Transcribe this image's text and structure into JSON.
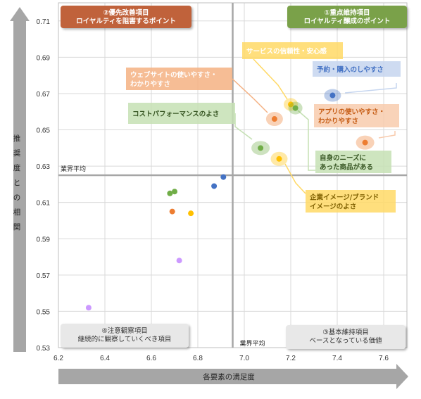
{
  "chart_data": {
    "type": "scatter",
    "xlabel": "各要素の満足度",
    "ylabel": "推奨度との相関",
    "xlim": [
      6.2,
      7.7
    ],
    "ylim": [
      0.53,
      0.72
    ],
    "x_ticks": [
      "6.2",
      "6.4",
      "6.6",
      "6.8",
      "7.0",
      "7.2",
      "7.4",
      "7.6"
    ],
    "y_ticks": [
      "0.53",
      "0.55",
      "0.57",
      "0.59",
      "0.61",
      "0.63",
      "0.65",
      "0.67",
      "0.69",
      "0.71"
    ],
    "grid": true,
    "industry_average": {
      "x": 6.95,
      "y": 0.625,
      "x_label": "業界平均",
      "y_label": "業界平均"
    },
    "quadrants": [
      {
        "name": "q2",
        "lines": [
          "②優先改善項目",
          "ロイヤルティを阻害するポイント"
        ],
        "color": "#c0623a",
        "position": "top-left"
      },
      {
        "name": "q1",
        "lines": [
          "①重点維持項目",
          "ロイヤルティ醸成のポイント"
        ],
        "color": "#7aa14a",
        "position": "top-right"
      },
      {
        "name": "q4",
        "lines": [
          "④注意観察項目",
          "継続的に観察していくべき項目"
        ],
        "color": "#e8e8e8",
        "position": "bottom-left"
      },
      {
        "name": "q3",
        "lines": [
          "③基本維持項目",
          "ベースとなっている価値"
        ],
        "color": "#e8e8e8",
        "position": "bottom-right"
      }
    ],
    "points": [
      {
        "x": 7.38,
        "y": 0.669,
        "color": "#4472c4"
      },
      {
        "x": 7.13,
        "y": 0.656,
        "color": "#ed7d31"
      },
      {
        "x": 7.52,
        "y": 0.643,
        "color": "#ed7d31"
      },
      {
        "x": 7.2,
        "y": 0.664,
        "color": "#ffc000"
      },
      {
        "x": 7.15,
        "y": 0.634,
        "color": "#ffc000"
      },
      {
        "x": 7.22,
        "y": 0.662,
        "color": "#70ad47"
      },
      {
        "x": 7.07,
        "y": 0.64,
        "color": "#70ad47"
      },
      {
        "x": 6.91,
        "y": 0.624,
        "color": "#4472c4"
      },
      {
        "x": 6.87,
        "y": 0.619,
        "color": "#4472c4"
      },
      {
        "x": 6.7,
        "y": 0.616,
        "color": "#70ad47"
      },
      {
        "x": 6.68,
        "y": 0.615,
        "color": "#70ad47"
      },
      {
        "x": 6.69,
        "y": 0.605,
        "color": "#ed7d31"
      },
      {
        "x": 6.77,
        "y": 0.604,
        "color": "#ffc000"
      },
      {
        "x": 6.72,
        "y": 0.578,
        "color": "#cc99ff"
      },
      {
        "x": 6.33,
        "y": 0.552,
        "color": "#cc99ff"
      }
    ],
    "annotations": [
      {
        "text": [
          "予約・購入のしやすさ"
        ],
        "color": "#4472c4",
        "fill": "#c5d5ef",
        "point": 0
      },
      {
        "text": [
          "ウェブサイトの使いやすさ・",
          "わかりやすさ"
        ],
        "color": "#ffffff",
        "fill": "#f4b183",
        "point": 1
      },
      {
        "text": [
          "アプリの使いやすさ・",
          "わかりやすさ"
        ],
        "color": "#c55a11",
        "fill": "#f8cbad",
        "point": 2
      },
      {
        "text": [
          "サービスの信頼性・安心感"
        ],
        "color": "#ffffff",
        "fill": "#ffd966",
        "point": 3
      },
      {
        "text": [
          "企業イメージ/ブランド",
          "イメージのよさ"
        ],
        "color": "#7f6000",
        "fill": "#ffd966",
        "point": 4
      },
      {
        "text": [
          "コストパフォーマンスのよさ"
        ],
        "color": "#375623",
        "fill": "#c5e0b4",
        "point": 6
      },
      {
        "text": [
          "自身のニーズに",
          "あった商品がある"
        ],
        "color": "#375623",
        "fill": "#c5e0b4",
        "point": 5
      }
    ]
  }
}
